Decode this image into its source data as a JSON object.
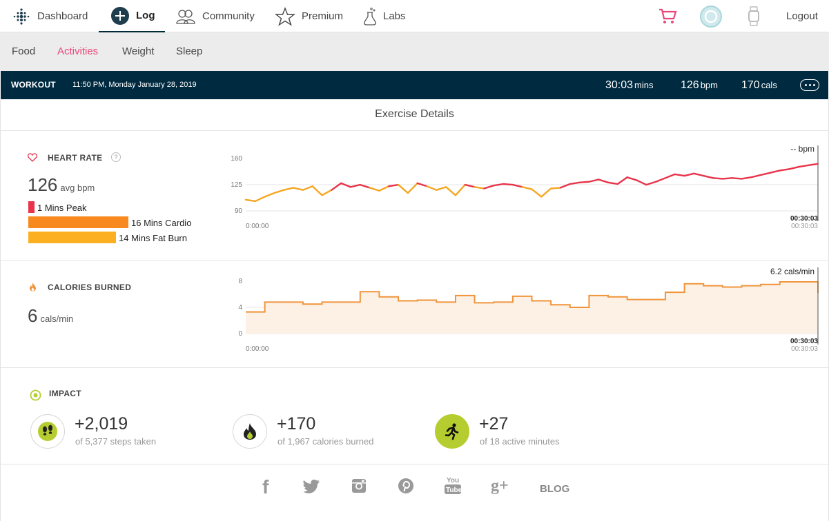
{
  "nav": {
    "dashboard": "Dashboard",
    "log": "Log",
    "community": "Community",
    "premium": "Premium",
    "labs": "Labs",
    "logout": "Logout"
  },
  "subnav": {
    "food": "Food",
    "activities": "Activities",
    "weight": "Weight",
    "sleep": "Sleep"
  },
  "workout": {
    "label": "WORKOUT",
    "datetime": "11:50 PM, Monday January 28, 2019",
    "duration": "30:03",
    "duration_unit": "mins",
    "bpm": "126",
    "bpm_unit": "bpm",
    "cals": "170",
    "cals_unit": "cals"
  },
  "exercise_title": "Exercise Details",
  "heart_rate": {
    "label": "HEART RATE",
    "help": "?",
    "avg": "126",
    "avg_unit": "avg bpm",
    "zones": [
      {
        "label": "1 Mins Peak",
        "minutes": 1,
        "color": "#e8334a"
      },
      {
        "label": "16 Mins Cardio",
        "minutes": 16,
        "color": "#f7891f"
      },
      {
        "label": "14 Mins Fat Burn",
        "minutes": 14,
        "color": "#fcb021"
      }
    ],
    "readout": "-- bpm",
    "end_time": "00:30:03"
  },
  "calories": {
    "label": "CALORIES BURNED",
    "value": "6",
    "unit": "cals/min",
    "readout": "6.2 cals/min",
    "end_time": "00:30:03"
  },
  "chart_data": [
    {
      "type": "line",
      "title": "",
      "ylabel": "",
      "ylim": [
        82,
        172
      ],
      "yticks": [
        "160",
        "125",
        "90"
      ],
      "x_start": "0:00:00",
      "x_end": "00:30:03",
      "colors": {
        "high": "#e8334a",
        "mid": "#f5a623"
      },
      "series": [
        {
          "x": [
            0,
            0.5,
            1,
            1.5,
            2,
            2.5,
            3,
            3.5,
            4,
            4.5,
            5,
            5.5,
            6,
            6.5,
            7,
            7.5,
            8,
            8.5,
            9,
            9.5,
            10,
            10.5,
            11,
            11.5,
            12,
            12.5,
            13,
            13.5,
            14,
            14.5,
            15,
            15.5,
            16,
            16.5,
            17,
            17.5,
            18,
            18.5,
            19,
            19.5,
            20,
            20.5,
            21,
            21.5,
            22,
            22.5,
            23,
            23.5,
            24,
            24.5,
            25,
            25.5,
            26,
            26.5,
            27,
            27.5,
            28,
            28.5,
            29,
            29.5,
            30
          ],
          "values": [
            104,
            102,
            108,
            113,
            117,
            120,
            117,
            122,
            110,
            117,
            126,
            121,
            124,
            120,
            116,
            122,
            124,
            113,
            126,
            122,
            117,
            121,
            110,
            124,
            121,
            119,
            123,
            125,
            124,
            121,
            118,
            108,
            119,
            120,
            125,
            127,
            128,
            131,
            127,
            125,
            134,
            130,
            124,
            128,
            133,
            138,
            136,
            139,
            136,
            133,
            132,
            133,
            132,
            134,
            137,
            140,
            143,
            145,
            148,
            150,
            152
          ]
        }
      ]
    },
    {
      "type": "area",
      "title": "",
      "ylabel": "",
      "ylim": [
        0,
        8
      ],
      "yticks": [
        "8",
        "4",
        "0"
      ],
      "x_start": "0:00:00",
      "x_end": "00:30:03",
      "color": "#f0943a",
      "series": [
        {
          "x": [
            0,
            1,
            2,
            3,
            4,
            5,
            6,
            7,
            8,
            9,
            10,
            11,
            12,
            13,
            14,
            15,
            16,
            17,
            18,
            19,
            20,
            21,
            22,
            23,
            24,
            25,
            26,
            27,
            28,
            29,
            30
          ],
          "values": [
            3.3,
            4.8,
            4.8,
            4.5,
            4.8,
            4.8,
            6.4,
            5.6,
            5.0,
            5.1,
            4.8,
            5.8,
            4.7,
            4.8,
            5.7,
            5.0,
            4.4,
            4.0,
            5.8,
            5.6,
            5.2,
            5.2,
            6.3,
            7.6,
            7.3,
            7.1,
            7.3,
            7.5,
            7.9,
            7.9,
            6.2
          ]
        }
      ]
    }
  ],
  "impact": {
    "label": "IMPACT",
    "items": [
      {
        "value": "+2,019",
        "sub": "of 5,377 steps taken"
      },
      {
        "value": "+170",
        "sub": "of 1,967 calories burned"
      },
      {
        "value": "+27",
        "sub": "of 18 active minutes"
      }
    ]
  },
  "footer": {
    "blog": "BLOG",
    "facebook": "f",
    "googleplus": "g+",
    "youtube_top": "You",
    "youtube_bottom": "Tube"
  }
}
